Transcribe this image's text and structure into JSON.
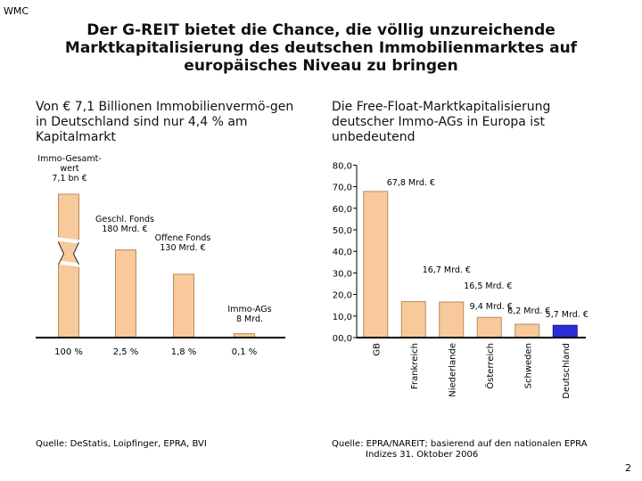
{
  "brand": "WMC",
  "title_lines": [
    "Der G-REIT bietet die Chance, die völlig unzureichende",
    "Marktkapitalisierung des deutschen Immobilienmarktes auf",
    "europäisches Niveau zu bringen"
  ],
  "left_intro": "Von € 7,1 Billionen Immobilienvermö-gen in Deutschland sind nur 4,4 % am Kapitalmarkt",
  "right_intro": "Die Free-Float-Marktkapitalisierung deutscher Immo-AGs in Europa ist unbedeutend",
  "left_source": "Quelle: DeStatis, Loipfinger, EPRA, BVI",
  "right_source_lines": [
    "Quelle: EPRA/NAREIT; basierend auf den nationalen EPRA",
    "Indizes  31. Oktober 2006"
  ],
  "page_number": "2",
  "colors": {
    "bar_fill": "#f8c99a",
    "bar_stroke": "#b88a5e",
    "highlight": "#2c2cd6",
    "axis": "#000000"
  },
  "chart_data": [
    {
      "type": "bar",
      "title": "",
      "categories": [
        "100 %",
        "2,5 %",
        "1,8 %",
        "0,1 %"
      ],
      "bar_labels": [
        [
          "Immo-Gesamt-",
          "wert",
          "7,1 bn €"
        ],
        [
          "Geschl. Fonds",
          "180 Mrd. €"
        ],
        [
          "Offene Fonds",
          "130 Mrd. €"
        ],
        [
          "Immo-AGs",
          "8 Mrd."
        ]
      ],
      "values": [
        7100,
        180,
        130,
        8
      ],
      "value_unit": "Mrd. €",
      "axis_break": true,
      "grid": false
    },
    {
      "type": "bar",
      "title": "",
      "categories": [
        "GB",
        "Frankreich",
        "Niederlande",
        "Österreich",
        "Schweden",
        "Deutschland"
      ],
      "values": [
        67.8,
        16.7,
        16.5,
        9.4,
        6.2,
        5.7
      ],
      "value_labels": [
        "67,8 Mrd. €",
        "16,7 Mrd. €",
        "16,5 Mrd. €",
        "9,4 Mrd. €",
        "6,2 Mrd. €",
        "5,7 Mrd. €"
      ],
      "highlight_category": "Deutschland",
      "yticks": [
        "00,0",
        "10,0",
        "20,0",
        "30,0",
        "40,0",
        "50,0",
        "60,0",
        "70,0",
        "80,0"
      ],
      "ylim": [
        0,
        80
      ],
      "grid": false
    }
  ]
}
